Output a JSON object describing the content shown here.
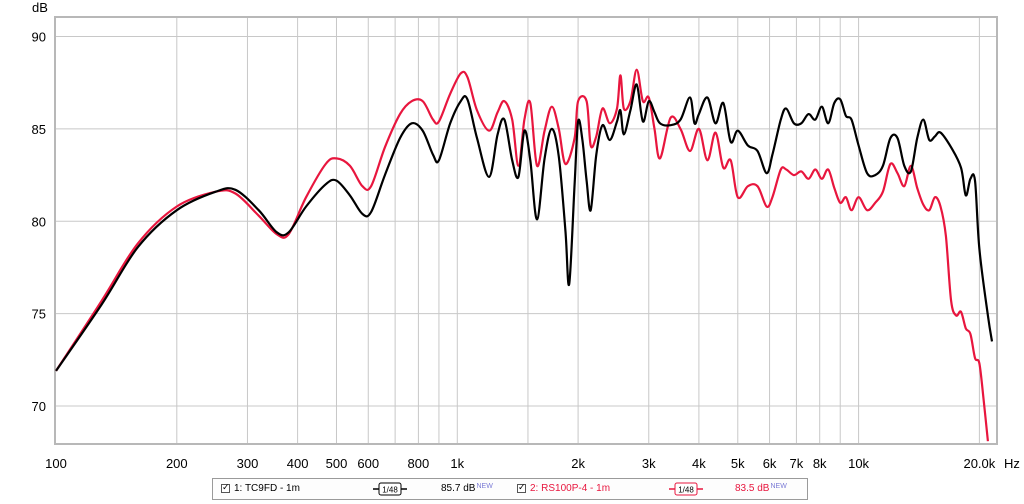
{
  "chart_data": {
    "type": "line",
    "y_unit_label": "dB",
    "x_unit_label": "Hz",
    "x_scale": "log",
    "xlim": [
      100,
      22000
    ],
    "ylim": [
      68,
      91
    ],
    "grid": true,
    "x_ticks": [
      {
        "value": 100,
        "label": "100"
      },
      {
        "value": 200,
        "label": "200"
      },
      {
        "value": 300,
        "label": "300"
      },
      {
        "value": 400,
        "label": "400"
      },
      {
        "value": 500,
        "label": "500"
      },
      {
        "value": 600,
        "label": "600"
      },
      {
        "value": 800,
        "label": "800"
      },
      {
        "value": 1000,
        "label": "1k"
      },
      {
        "value": 2000,
        "label": "2k"
      },
      {
        "value": 3000,
        "label": "3k"
      },
      {
        "value": 4000,
        "label": "4k"
      },
      {
        "value": 5000,
        "label": "5k"
      },
      {
        "value": 6000,
        "label": "6k"
      },
      {
        "value": 7000,
        "label": "7k"
      },
      {
        "value": 8000,
        "label": "8k"
      },
      {
        "value": 10000,
        "label": "10k"
      },
      {
        "value": 20000,
        "label": "20.0k"
      }
    ],
    "x_minor_ticks": [
      700,
      900,
      1500,
      9000
    ],
    "y_ticks": [
      70,
      75,
      80,
      85,
      90
    ],
    "series": [
      {
        "name": "1: TC9FD - 1m",
        "color": "#000000",
        "points": [
          [
            100,
            71.9
          ],
          [
            130,
            75.5
          ],
          [
            160,
            78.6
          ],
          [
            200,
            80.6
          ],
          [
            250,
            81.6
          ],
          [
            280,
            81.7
          ],
          [
            320,
            80.6
          ],
          [
            355,
            79.4
          ],
          [
            380,
            79.4
          ],
          [
            420,
            80.8
          ],
          [
            470,
            82.0
          ],
          [
            500,
            82.2
          ],
          [
            540,
            81.4
          ],
          [
            580,
            80.4
          ],
          [
            610,
            80.5
          ],
          [
            660,
            82.5
          ],
          [
            720,
            84.5
          ],
          [
            770,
            85.3
          ],
          [
            820,
            84.9
          ],
          [
            870,
            83.6
          ],
          [
            900,
            83.3
          ],
          [
            960,
            85.3
          ],
          [
            1020,
            86.5
          ],
          [
            1060,
            86.6
          ],
          [
            1120,
            84.5
          ],
          [
            1200,
            82.4
          ],
          [
            1260,
            84.7
          ],
          [
            1310,
            85.5
          ],
          [
            1370,
            83.3
          ],
          [
            1420,
            82.4
          ],
          [
            1470,
            84.9
          ],
          [
            1520,
            83.3
          ],
          [
            1580,
            80.1
          ],
          [
            1650,
            83.4
          ],
          [
            1720,
            85.0
          ],
          [
            1790,
            83.5
          ],
          [
            1860,
            79.5
          ],
          [
            1900,
            76.6
          ],
          [
            1960,
            82.0
          ],
          [
            2000,
            85.4
          ],
          [
            2050,
            84.4
          ],
          [
            2100,
            82.2
          ],
          [
            2150,
            80.6
          ],
          [
            2220,
            83.6
          ],
          [
            2300,
            85.2
          ],
          [
            2400,
            84.4
          ],
          [
            2500,
            85.4
          ],
          [
            2550,
            86.0
          ],
          [
            2600,
            84.7
          ],
          [
            2700,
            86.0
          ],
          [
            2800,
            87.4
          ],
          [
            2900,
            85.4
          ],
          [
            3000,
            86.5
          ],
          [
            3100,
            85.9
          ],
          [
            3200,
            85.3
          ],
          [
            3400,
            85.2
          ],
          [
            3600,
            85.5
          ],
          [
            3800,
            86.7
          ],
          [
            3900,
            85.3
          ],
          [
            4000,
            85.8
          ],
          [
            4200,
            86.7
          ],
          [
            4400,
            85.3
          ],
          [
            4600,
            86.4
          ],
          [
            4800,
            84.3
          ],
          [
            5000,
            84.9
          ],
          [
            5300,
            84.1
          ],
          [
            5600,
            83.8
          ],
          [
            5900,
            82.6
          ],
          [
            6100,
            83.6
          ],
          [
            6400,
            85.5
          ],
          [
            6600,
            86.1
          ],
          [
            6900,
            85.3
          ],
          [
            7200,
            85.3
          ],
          [
            7500,
            85.8
          ],
          [
            7800,
            85.5
          ],
          [
            8100,
            86.2
          ],
          [
            8400,
            85.3
          ],
          [
            8700,
            86.4
          ],
          [
            9000,
            86.6
          ],
          [
            9300,
            85.7
          ],
          [
            9600,
            85.5
          ],
          [
            10000,
            84.1
          ],
          [
            10500,
            82.6
          ],
          [
            11000,
            82.5
          ],
          [
            11500,
            83.0
          ],
          [
            12000,
            84.5
          ],
          [
            12500,
            84.5
          ],
          [
            13000,
            83.0
          ],
          [
            13500,
            82.7
          ],
          [
            14000,
            84.5
          ],
          [
            14500,
            85.5
          ],
          [
            15000,
            84.4
          ],
          [
            15500,
            84.6
          ],
          [
            16000,
            84.8
          ],
          [
            17000,
            84.0
          ],
          [
            18000,
            82.9
          ],
          [
            18500,
            81.4
          ],
          [
            19000,
            82.3
          ],
          [
            19500,
            82.2
          ],
          [
            20000,
            78.5
          ],
          [
            21000,
            74.9
          ],
          [
            21500,
            73.5
          ]
        ]
      },
      {
        "name": "2: RS100P-4 - 1m",
        "color": "#e8163e",
        "points": [
          [
            100,
            71.9
          ],
          [
            130,
            75.7
          ],
          [
            160,
            78.8
          ],
          [
            200,
            80.8
          ],
          [
            250,
            81.6
          ],
          [
            280,
            81.5
          ],
          [
            320,
            80.3
          ],
          [
            355,
            79.3
          ],
          [
            380,
            79.3
          ],
          [
            420,
            81.3
          ],
          [
            470,
            83.1
          ],
          [
            500,
            83.4
          ],
          [
            540,
            83.0
          ],
          [
            580,
            81.9
          ],
          [
            610,
            81.9
          ],
          [
            660,
            84.0
          ],
          [
            720,
            85.8
          ],
          [
            770,
            86.5
          ],
          [
            820,
            86.5
          ],
          [
            870,
            85.5
          ],
          [
            900,
            85.4
          ],
          [
            960,
            86.9
          ],
          [
            1020,
            88.0
          ],
          [
            1060,
            87.8
          ],
          [
            1120,
            86.0
          ],
          [
            1200,
            84.9
          ],
          [
            1260,
            85.9
          ],
          [
            1310,
            86.5
          ],
          [
            1370,
            85.5
          ],
          [
            1420,
            83.0
          ],
          [
            1470,
            85.5
          ],
          [
            1520,
            86.4
          ],
          [
            1580,
            83.0
          ],
          [
            1650,
            84.9
          ],
          [
            1720,
            86.2
          ],
          [
            1790,
            85.0
          ],
          [
            1860,
            83.1
          ],
          [
            1960,
            84.5
          ],
          [
            2000,
            86.5
          ],
          [
            2100,
            86.5
          ],
          [
            2150,
            84.1
          ],
          [
            2220,
            84.6
          ],
          [
            2300,
            86.1
          ],
          [
            2400,
            85.3
          ],
          [
            2500,
            86.1
          ],
          [
            2550,
            87.9
          ],
          [
            2600,
            86.1
          ],
          [
            2700,
            86.5
          ],
          [
            2800,
            88.2
          ],
          [
            2900,
            86.5
          ],
          [
            3000,
            86.7
          ],
          [
            3100,
            85.0
          ],
          [
            3200,
            83.4
          ],
          [
            3400,
            85.6
          ],
          [
            3600,
            85.0
          ],
          [
            3800,
            83.8
          ],
          [
            4000,
            85.0
          ],
          [
            4200,
            83.3
          ],
          [
            4400,
            84.8
          ],
          [
            4600,
            82.9
          ],
          [
            4800,
            83.3
          ],
          [
            5000,
            81.3
          ],
          [
            5300,
            81.9
          ],
          [
            5600,
            81.9
          ],
          [
            5900,
            80.8
          ],
          [
            6100,
            81.3
          ],
          [
            6400,
            82.8
          ],
          [
            6600,
            82.8
          ],
          [
            6900,
            82.5
          ],
          [
            7200,
            82.7
          ],
          [
            7500,
            82.3
          ],
          [
            7800,
            82.8
          ],
          [
            8100,
            82.3
          ],
          [
            8400,
            82.8
          ],
          [
            8700,
            81.8
          ],
          [
            9000,
            81.0
          ],
          [
            9300,
            81.3
          ],
          [
            9600,
            80.6
          ],
          [
            10000,
            81.3
          ],
          [
            10500,
            80.6
          ],
          [
            11000,
            81.0
          ],
          [
            11500,
            81.6
          ],
          [
            12000,
            83.1
          ],
          [
            12500,
            82.6
          ],
          [
            13000,
            81.9
          ],
          [
            13500,
            83.0
          ],
          [
            14000,
            81.8
          ],
          [
            14500,
            80.9
          ],
          [
            15000,
            80.6
          ],
          [
            15500,
            81.3
          ],
          [
            16000,
            80.8
          ],
          [
            16500,
            79.2
          ],
          [
            17000,
            75.7
          ],
          [
            17500,
            74.9
          ],
          [
            18000,
            75.1
          ],
          [
            18500,
            74.2
          ],
          [
            19000,
            73.9
          ],
          [
            19500,
            72.6
          ],
          [
            20000,
            72.3
          ],
          [
            20500,
            70.3
          ],
          [
            21000,
            68.1
          ]
        ]
      }
    ]
  },
  "legend": {
    "items": [
      {
        "check": "✓",
        "label": "1: TC9FD - 1m",
        "smooth_label": "1/48",
        "level": "85.7 dB",
        "new_tag": "NEW",
        "color": "#000000"
      },
      {
        "check": "✓",
        "label": "2: RS100P-4 - 1m",
        "smooth_label": "1/48",
        "level": "83.5 dB",
        "new_tag": "NEW",
        "color": "#e8163e"
      }
    ]
  }
}
